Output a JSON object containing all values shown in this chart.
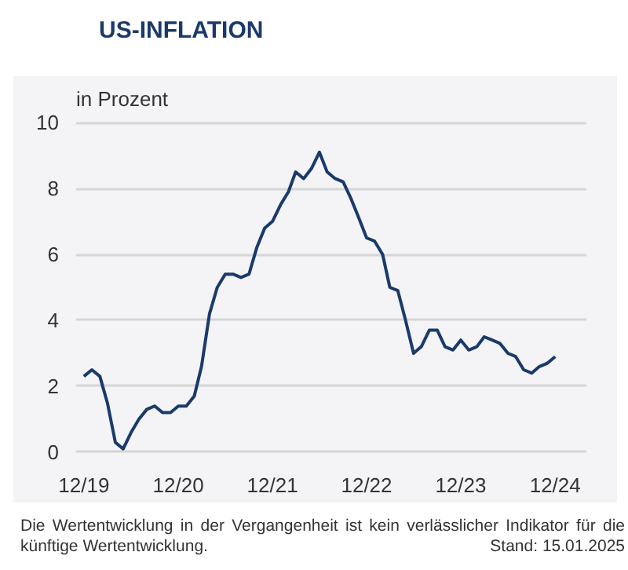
{
  "chart_data": {
    "type": "line",
    "title": "US-INFLATION",
    "ylabel": "in Prozent",
    "x": [
      "2019-12",
      "2020-01",
      "2020-02",
      "2020-03",
      "2020-04",
      "2020-05",
      "2020-06",
      "2020-07",
      "2020-08",
      "2020-09",
      "2020-10",
      "2020-11",
      "2020-12",
      "2021-01",
      "2021-02",
      "2021-03",
      "2021-04",
      "2021-05",
      "2021-06",
      "2021-07",
      "2021-08",
      "2021-09",
      "2021-10",
      "2021-11",
      "2021-12",
      "2022-01",
      "2022-02",
      "2022-03",
      "2022-04",
      "2022-05",
      "2022-06",
      "2022-07",
      "2022-08",
      "2022-09",
      "2022-10",
      "2022-11",
      "2022-12",
      "2023-01",
      "2023-02",
      "2023-03",
      "2023-04",
      "2023-05",
      "2023-06",
      "2023-07",
      "2023-08",
      "2023-09",
      "2023-10",
      "2023-11",
      "2023-12",
      "2024-01",
      "2024-02",
      "2024-03",
      "2024-04",
      "2024-05",
      "2024-06",
      "2024-07",
      "2024-08",
      "2024-09",
      "2024-10",
      "2024-11",
      "2024-12"
    ],
    "series": [
      {
        "color": "#1b3a6b",
        "values": [
          2.3,
          2.5,
          2.3,
          1.5,
          0.3,
          0.1,
          0.6,
          1.0,
          1.3,
          1.4,
          1.2,
          1.2,
          1.4,
          1.4,
          1.7,
          2.6,
          4.2,
          5.0,
          5.4,
          5.4,
          5.3,
          5.4,
          6.2,
          6.8,
          7.0,
          7.5,
          7.9,
          8.5,
          8.3,
          8.6,
          9.1,
          8.5,
          8.3,
          8.2,
          7.7,
          7.1,
          6.5,
          6.4,
          6.0,
          5.0,
          4.9,
          4.0,
          3.0,
          3.2,
          3.7,
          3.7,
          3.2,
          3.1,
          3.4,
          3.1,
          3.2,
          3.5,
          3.4,
          3.3,
          3.0,
          2.9,
          2.5,
          2.4,
          2.6,
          2.7,
          2.9
        ]
      }
    ],
    "xlim": [
      "2019-11",
      "2025-04"
    ],
    "xticks": [
      {
        "value": "2019-12",
        "label": "12/19"
      },
      {
        "value": "2020-12",
        "label": "12/20"
      },
      {
        "value": "2021-12",
        "label": "12/21"
      },
      {
        "value": "2022-12",
        "label": "12/22"
      },
      {
        "value": "2023-12",
        "label": "12/23"
      },
      {
        "value": "2024-12",
        "label": "12/24"
      }
    ],
    "ylim": [
      0,
      10
    ],
    "yticks": [
      0,
      2,
      4,
      6,
      8,
      10
    ],
    "grid": "y",
    "marker": "none",
    "line_style": "solid",
    "annotations": [
      "Die Wertentwicklung in der Vergangenheit ist kein verlässlicher Indikator für die künftige Wertentwicklung.",
      "Stand: 15.01.2025"
    ]
  }
}
